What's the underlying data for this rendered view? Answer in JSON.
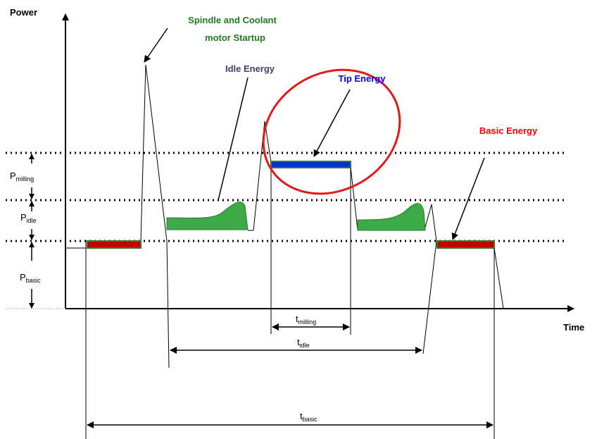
{
  "axes": {
    "y_label": "Power",
    "x_label": "Time"
  },
  "annotations": {
    "spindle_line1": "Spindle and Coolant",
    "spindle_line2": "motor Startup",
    "idle_energy": "Idle Energy",
    "tip_energy": "Tip Energy",
    "basic_energy": "Basic Energy"
  },
  "power_levels": {
    "milling": {
      "base": "P",
      "sub": "milling"
    },
    "idle": {
      "base": "P",
      "sub": "idle"
    },
    "basic": {
      "base": "P",
      "sub": "basic"
    }
  },
  "time_intervals": {
    "milling": {
      "base": "t",
      "sub": "milling"
    },
    "idle": {
      "base": "t",
      "sub": "idle"
    },
    "basic": {
      "base": "t",
      "sub": "basic"
    }
  },
  "colors": {
    "spindle_text": "#1f7a1f",
    "idle_text": "#4b3a66",
    "tip_text": "#0000ff",
    "basic_text": "#ff0000",
    "basic_fill": "#c00000",
    "tip_fill": "#0033cc",
    "idle_fill": "#3daa48",
    "circle": "#e11919"
  }
}
